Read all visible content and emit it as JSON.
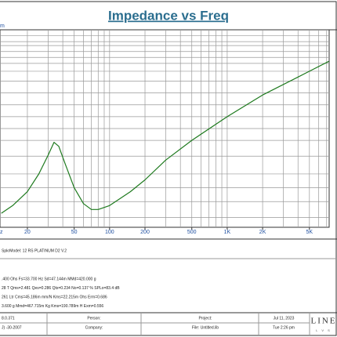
{
  "chart_data": {
    "type": "line",
    "title": "Impedance vs Freq",
    "ylabel": "m",
    "xlabel": "z",
    "watermark": "LM",
    "xscale": "log",
    "xlim": [
      11.7,
      7360
    ],
    "ylim": [
      0,
      100
    ],
    "xticks": [
      20,
      50,
      100,
      200,
      500,
      {
        "value": 1000,
        "label": "1K"
      },
      {
        "value": 2000,
        "label": "2K"
      },
      {
        "value": 5000,
        "label": "5K"
      }
    ],
    "x_gridlines": [
      20,
      30,
      40,
      50,
      60,
      70,
      80,
      90,
      100,
      200,
      300,
      400,
      500,
      600,
      700,
      800,
      900,
      1000,
      2000,
      3000,
      4000,
      5000,
      6000,
      7000
    ],
    "y_gridlines": [
      5,
      13,
      20,
      27,
      36,
      44,
      50,
      56,
      62,
      68,
      74,
      79,
      83,
      86,
      89,
      92,
      94,
      97
    ],
    "series": [
      {
        "color": "#1e7a1e",
        "x": [
          12,
          15,
          20,
          25,
          30,
          33.7,
          37,
          42,
          50,
          60,
          70,
          80,
          100,
          150,
          200,
          300,
          500,
          1000,
          2000,
          5000,
          7300
        ],
        "values": [
          7.1,
          11,
          18,
          27,
          36.5,
          43,
          41,
          32,
          20,
          12,
          9,
          9,
          11,
          18,
          24,
          34,
          44,
          56,
          67,
          79,
          84
        ]
      }
    ]
  },
  "footer": {
    "model": "SpkrModel:  12 RS PLATINUM D2  V.2",
    "params": [
      ".400 Ohs  Fs=33.700 Hz  Sd=47.144m  MMd=420.000 g",
      "28 T  Qms=2.481  Qes=0.286  Qts=0.234  No=0.137 %  SPLo=83.4 dB",
      "261 Ltr  Cms=45.186m mm/N  Kms=22.215m Ohs  Erm=0.686",
      "3.600 g  Mmd=467.715m Kg  Kms=190.789m H  Exm=0.556"
    ],
    "table": [
      [
        "8.0.371",
        "Person:",
        "Project:",
        "Jul 11, 2023"
      ],
      [
        "J) -30-2007",
        "Company:",
        "File: Untitled.lib",
        "Tue  2:26 pm"
      ]
    ],
    "logo": "LINE",
    "logo_sub": "L V S"
  }
}
